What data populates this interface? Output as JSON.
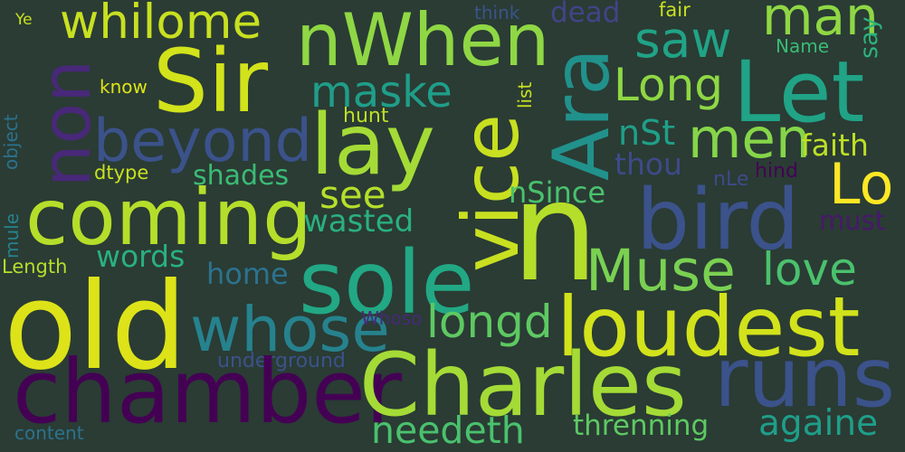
{
  "words": [
    {
      "id": "ye",
      "text": "Ye",
      "color": "#c8e020"
    },
    {
      "id": "whilome",
      "text": "whilome",
      "color": "#c8e020"
    },
    {
      "id": "nwhen",
      "text": "nWhen",
      "color": "#8fd744"
    },
    {
      "id": "think",
      "text": "think",
      "color": "#3a548c"
    },
    {
      "id": "dead",
      "text": "dead",
      "color": "#414487"
    },
    {
      "id": "fair",
      "text": "fair",
      "color": "#c8e020"
    },
    {
      "id": "man",
      "text": "man",
      "color": "#8fd744"
    },
    {
      "id": "say",
      "text": "say",
      "color": "#2db27d"
    },
    {
      "id": "name",
      "text": "Name",
      "color": "#3bbb75"
    },
    {
      "id": "non",
      "text": "non",
      "color": "#482878"
    },
    {
      "id": "sir",
      "text": "Sir",
      "color": "#d2e21b"
    },
    {
      "id": "saw",
      "text": "saw",
      "color": "#20a386"
    },
    {
      "id": "ara",
      "text": "Ara",
      "color": "#21918c"
    },
    {
      "id": "let",
      "text": "Let",
      "color": "#20a386"
    },
    {
      "id": "long",
      "text": "Long",
      "color": "#8fd744"
    },
    {
      "id": "know",
      "text": "know",
      "color": "#dde318"
    },
    {
      "id": "maske",
      "text": "maske",
      "color": "#1f9e89"
    },
    {
      "id": "list",
      "text": "list",
      "color": "#c8e020"
    },
    {
      "id": "object",
      "text": "object",
      "color": "#2c728e"
    },
    {
      "id": "hunt",
      "text": "hunt",
      "color": "#bddf26"
    },
    {
      "id": "beyond",
      "text": "beyond",
      "color": "#3b528b"
    },
    {
      "id": "lay",
      "text": "lay",
      "color": "#a5db36"
    },
    {
      "id": "vice",
      "text": "vice",
      "color": "#c8e020"
    },
    {
      "id": "nst",
      "text": "nSt",
      "color": "#1fa088"
    },
    {
      "id": "men",
      "text": "men",
      "color": "#86d549"
    },
    {
      "id": "faith",
      "text": "faith",
      "color": "#bddf26"
    },
    {
      "id": "thou",
      "text": "thou",
      "color": "#3e4a89"
    },
    {
      "id": "hind",
      "text": "hind",
      "color": "#440154"
    },
    {
      "id": "dtype",
      "text": "dtype",
      "color": "#c8e020"
    },
    {
      "id": "shades",
      "text": "shades",
      "color": "#3bbb75"
    },
    {
      "id": "see",
      "text": "see",
      "color": "#b5de2b"
    },
    {
      "id": "nsince",
      "text": "nSince",
      "color": "#4ac16d"
    },
    {
      "id": "nle",
      "text": "nLe",
      "color": "#3e4a89"
    },
    {
      "id": "lo",
      "text": "Lo",
      "color": "#fde725"
    },
    {
      "id": "coming",
      "text": "coming",
      "color": "#b5de2b"
    },
    {
      "id": "n",
      "text": "n",
      "color": "#b5de2b"
    },
    {
      "id": "bird",
      "text": "bird",
      "color": "#3b528b"
    },
    {
      "id": "must",
      "text": "must",
      "color": "#48186a"
    },
    {
      "id": "wasted",
      "text": "wasted",
      "color": "#2ab07f"
    },
    {
      "id": "mule",
      "text": "mule",
      "color": "#26828e"
    },
    {
      "id": "length",
      "text": "Length",
      "color": "#b5de2b"
    },
    {
      "id": "words",
      "text": "words",
      "color": "#2ab07f"
    },
    {
      "id": "muse",
      "text": "Muse",
      "color": "#7ad151"
    },
    {
      "id": "love",
      "text": "love",
      "color": "#4ac16d"
    },
    {
      "id": "home",
      "text": "home",
      "color": "#2c728e"
    },
    {
      "id": "sole",
      "text": "sole",
      "color": "#22a884"
    },
    {
      "id": "old",
      "text": "old",
      "color": "#dde318"
    },
    {
      "id": "whose",
      "text": "whose",
      "color": "#26828e"
    },
    {
      "id": "longd",
      "text": "longd",
      "color": "#5ec962"
    },
    {
      "id": "loudest",
      "text": "loudest",
      "color": "#d2e21b"
    },
    {
      "id": "whoso",
      "text": "Whoso",
      "color": "#482878"
    },
    {
      "id": "underground",
      "text": "underground",
      "color": "#3b528b"
    },
    {
      "id": "chamber",
      "text": "chamber",
      "color": "#440154"
    },
    {
      "id": "charles",
      "text": "Charles",
      "color": "#a5db36"
    },
    {
      "id": "runs",
      "text": "runs",
      "color": "#3b528b"
    },
    {
      "id": "needeth",
      "text": "needeth",
      "color": "#4ac16d"
    },
    {
      "id": "threnning",
      "text": "threnning",
      "color": "#5ec962"
    },
    {
      "id": "againe",
      "text": "againe",
      "color": "#1f9e89"
    },
    {
      "id": "content",
      "text": "content",
      "color": "#2c728e"
    }
  ]
}
